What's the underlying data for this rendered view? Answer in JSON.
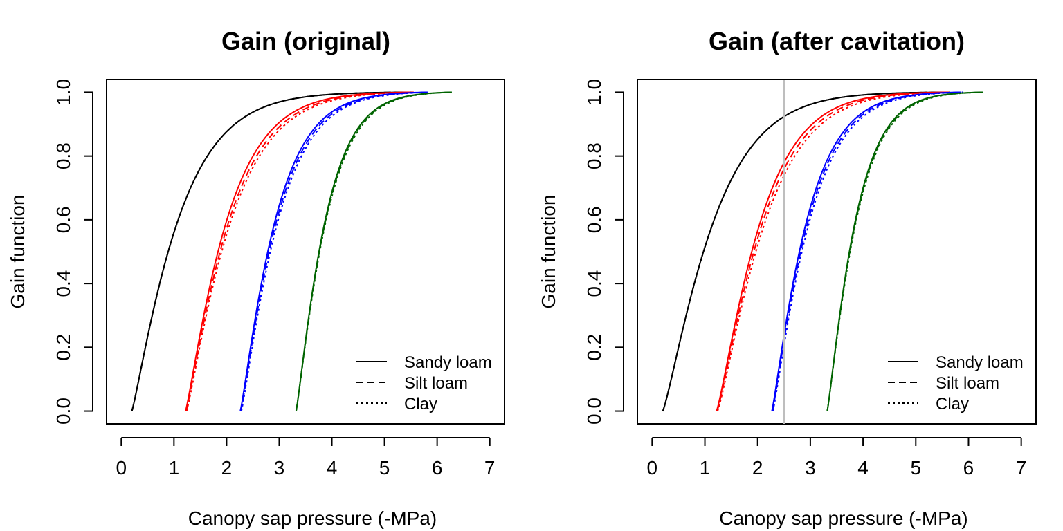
{
  "chart_data": [
    {
      "type": "line",
      "title": "Gain (original)",
      "xlabel": "Canopy sap pressure (-MPa)",
      "ylabel": "Gain function",
      "xlim": [
        0,
        7
      ],
      "ylim": [
        0,
        1
      ],
      "xticks": [
        "0",
        "1",
        "2",
        "3",
        "4",
        "5",
        "6",
        "7"
      ],
      "yticks": [
        "0.0",
        "0.2",
        "0.4",
        "0.6",
        "0.8",
        "1.0"
      ],
      "legend": {
        "position": "bottom-right",
        "entries": [
          {
            "label": "Sandy loam",
            "dash": "solid"
          },
          {
            "label": "Silt loam",
            "dash": "dashed"
          },
          {
            "label": "Clay",
            "dash": "dotted"
          }
        ]
      },
      "series": [
        {
          "color": "#000000",
          "dash": "solid",
          "start": 0.2,
          "end": 5.5,
          "scale": 0.95,
          "shape": 1.15
        },
        {
          "color": "#000000",
          "dash": "dashed",
          "start": 0.2,
          "end": 5.52,
          "scale": 0.95,
          "shape": 1.15
        },
        {
          "color": "#000000",
          "dash": "dotted",
          "start": 0.2,
          "end": 5.55,
          "scale": 0.95,
          "shape": 1.15
        },
        {
          "color": "#ff0000",
          "dash": "solid",
          "start": 1.22,
          "end": 5.5,
          "scale": 0.85,
          "shape": 1.15
        },
        {
          "color": "#ff0000",
          "dash": "dashed",
          "start": 1.23,
          "end": 5.53,
          "scale": 0.89,
          "shape": 1.15
        },
        {
          "color": "#ff0000",
          "dash": "dotted",
          "start": 1.24,
          "end": 5.56,
          "scale": 0.92,
          "shape": 1.15
        },
        {
          "color": "#0000ff",
          "dash": "solid",
          "start": 2.26,
          "end": 5.8,
          "scale": 0.72,
          "shape": 1.15
        },
        {
          "color": "#0000ff",
          "dash": "dashed",
          "start": 2.27,
          "end": 5.82,
          "scale": 0.74,
          "shape": 1.15
        },
        {
          "color": "#0000ff",
          "dash": "dotted",
          "start": 2.28,
          "end": 5.84,
          "scale": 0.76,
          "shape": 1.15
        },
        {
          "color": "#006400",
          "dash": "solid",
          "start": 3.32,
          "end": 6.28,
          "scale": 0.6,
          "shape": 1.15
        },
        {
          "color": "#006400",
          "dash": "dashed",
          "start": 3.32,
          "end": 6.28,
          "scale": 0.61,
          "shape": 1.15
        },
        {
          "color": "#006400",
          "dash": "dotted",
          "start": 3.32,
          "end": 6.28,
          "scale": 0.62,
          "shape": 1.15
        }
      ]
    },
    {
      "type": "line",
      "title": "Gain (after cavitation)",
      "xlabel": "Canopy sap pressure (-MPa)",
      "ylabel": "Gain function",
      "xlim": [
        0,
        7
      ],
      "ylim": [
        0,
        1
      ],
      "xticks": [
        "0",
        "1",
        "2",
        "3",
        "4",
        "5",
        "6",
        "7"
      ],
      "yticks": [
        "0.0",
        "0.2",
        "0.4",
        "0.6",
        "0.8",
        "1.0"
      ],
      "vline": {
        "x": 2.5,
        "color": "#bebebe"
      },
      "legend": {
        "position": "bottom-right",
        "entries": [
          {
            "label": "Sandy loam",
            "dash": "solid"
          },
          {
            "label": "Silt loam",
            "dash": "dashed"
          },
          {
            "label": "Clay",
            "dash": "dotted"
          }
        ]
      },
      "series": [
        {
          "color": "#000000",
          "dash": "solid",
          "start": 0.2,
          "end": 5.6,
          "scale": 1.05,
          "shape": 1.2
        },
        {
          "color": "#000000",
          "dash": "dashed",
          "start": 0.2,
          "end": 5.62,
          "scale": 1.05,
          "shape": 1.2
        },
        {
          "color": "#000000",
          "dash": "dotted",
          "start": 0.2,
          "end": 5.65,
          "scale": 1.05,
          "shape": 1.2
        },
        {
          "color": "#ff0000",
          "dash": "solid",
          "start": 1.22,
          "end": 5.6,
          "scale": 0.91,
          "shape": 1.2
        },
        {
          "color": "#ff0000",
          "dash": "dashed",
          "start": 1.23,
          "end": 5.63,
          "scale": 0.95,
          "shape": 1.2
        },
        {
          "color": "#ff0000",
          "dash": "dotted",
          "start": 1.24,
          "end": 5.66,
          "scale": 0.99,
          "shape": 1.2
        },
        {
          "color": "#0000ff",
          "dash": "solid",
          "start": 2.27,
          "end": 5.86,
          "scale": 0.72,
          "shape": 1.15
        },
        {
          "color": "#0000ff",
          "dash": "dashed",
          "start": 2.28,
          "end": 5.88,
          "scale": 0.74,
          "shape": 1.15
        },
        {
          "color": "#0000ff",
          "dash": "dotted",
          "start": 2.29,
          "end": 5.9,
          "scale": 0.76,
          "shape": 1.15
        },
        {
          "color": "#006400",
          "dash": "solid",
          "start": 3.32,
          "end": 6.28,
          "scale": 0.58,
          "shape": 1.15
        },
        {
          "color": "#006400",
          "dash": "dashed",
          "start": 3.32,
          "end": 6.28,
          "scale": 0.59,
          "shape": 1.15
        },
        {
          "color": "#006400",
          "dash": "dotted",
          "start": 3.32,
          "end": 6.28,
          "scale": 0.6,
          "shape": 1.15
        }
      ]
    }
  ]
}
